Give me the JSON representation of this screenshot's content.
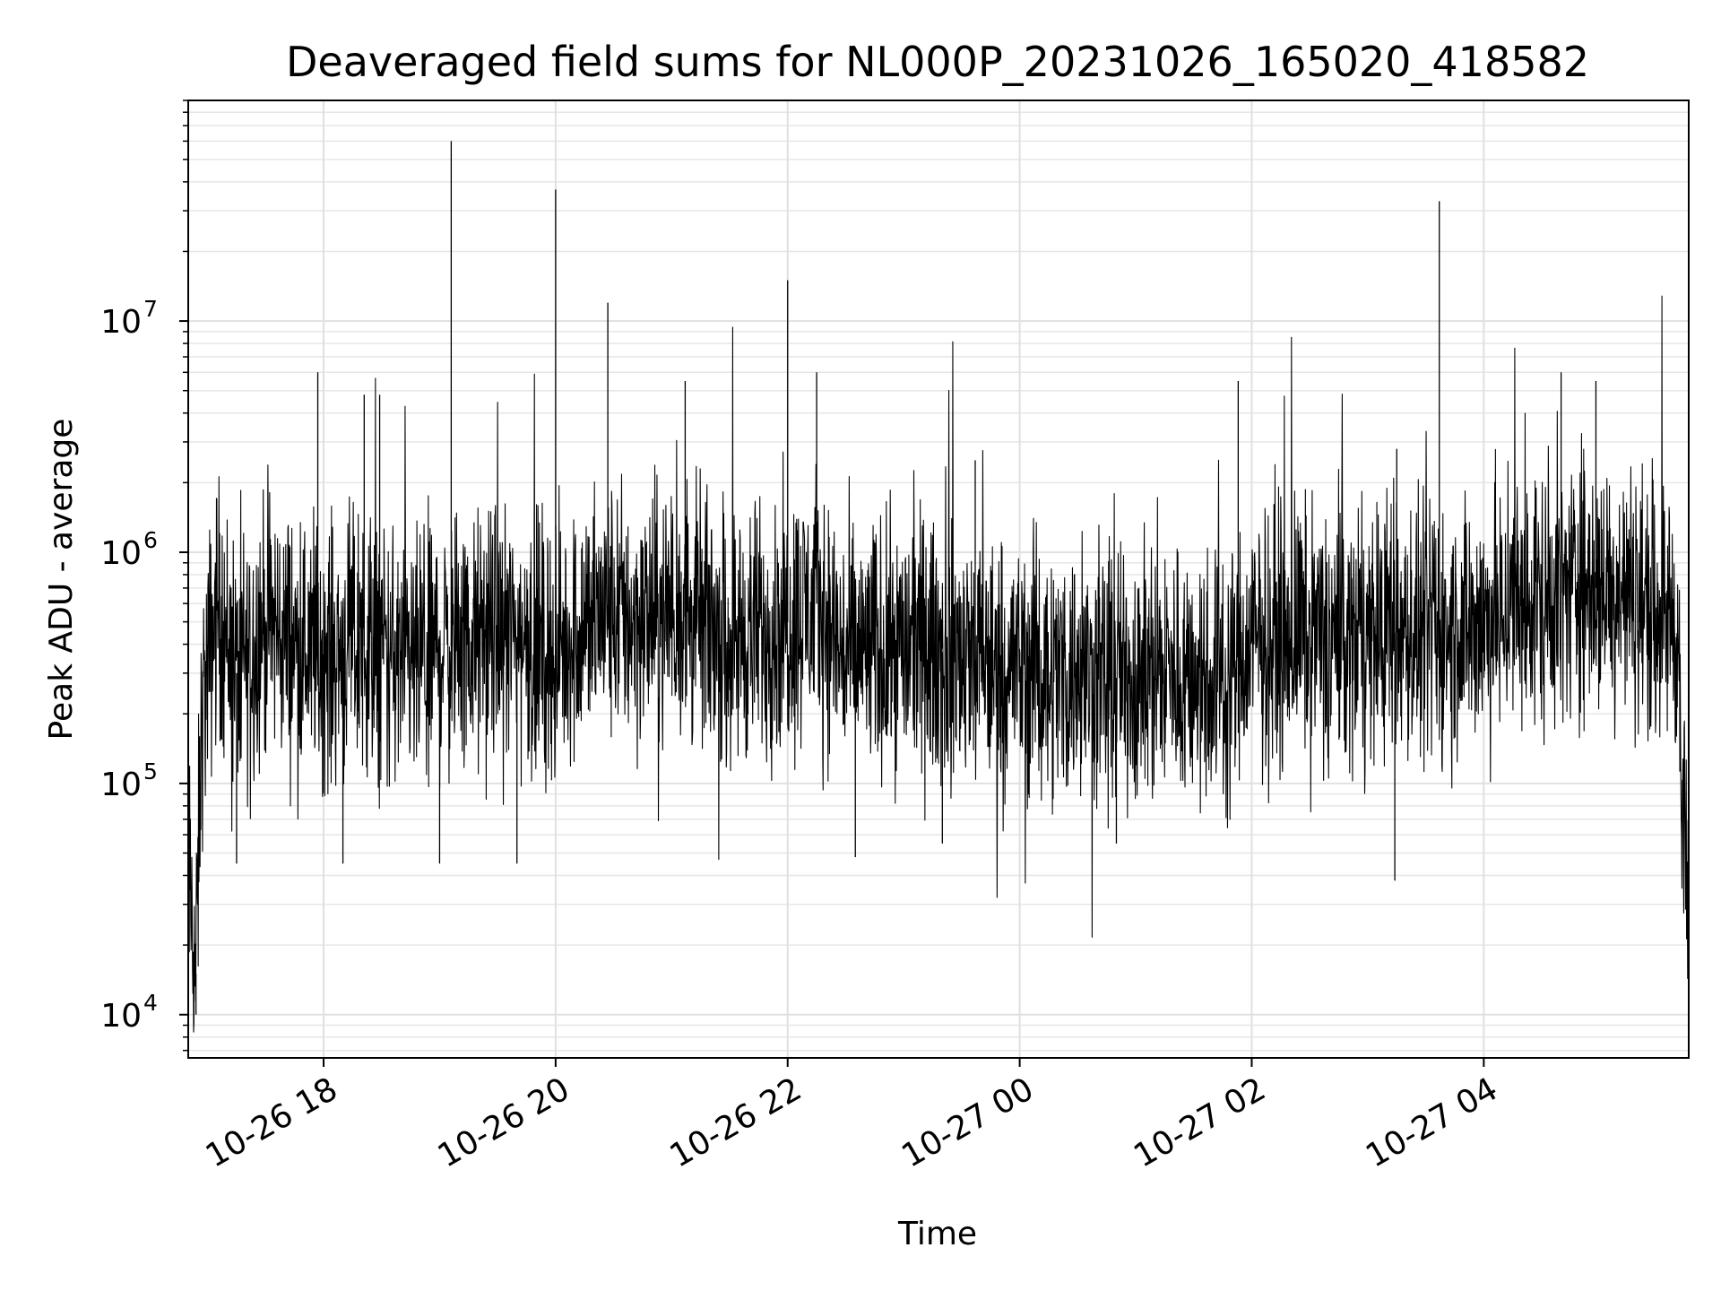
{
  "chart_data": {
    "type": "line",
    "title": "Deaveraged field sums for NL000P_20231026_165020_418582",
    "xlabel": "Time",
    "ylabel": "Peak ADU - average",
    "y_scale": "log",
    "ylim": [
      6500,
      90000000
    ],
    "xlim": [
      "2023-10-26 16:50",
      "2023-10-27 05:46"
    ],
    "grid": true,
    "line_color": "#000000",
    "x_ticks": [
      {
        "value": "2023-10-26 18:00",
        "label": "10-26 18"
      },
      {
        "value": "2023-10-26 20:00",
        "label": "10-26 20"
      },
      {
        "value": "2023-10-26 22:00",
        "label": "10-26 22"
      },
      {
        "value": "2023-10-27 00:00",
        "label": "10-27 00"
      },
      {
        "value": "2023-10-27 02:00",
        "label": "10-27 02"
      },
      {
        "value": "2023-10-27 04:00",
        "label": "10-27 04"
      }
    ],
    "y_ticks": [
      {
        "value": 10000,
        "base": "10",
        "exp": "4"
      },
      {
        "value": 100000,
        "base": "10",
        "exp": "5"
      },
      {
        "value": 1000000,
        "base": "10",
        "exp": "6"
      },
      {
        "value": 10000000,
        "base": "10",
        "exp": "7"
      }
    ],
    "series": [
      {
        "points": [
          [
            "2023-10-26 16:50",
            40000
          ],
          [
            "2023-10-26 16:54",
            15000
          ],
          [
            "2023-10-26 16:57",
            200000
          ],
          [
            "2023-10-26 17:05",
            600000
          ],
          [
            "2023-10-26 17:15",
            300000
          ],
          [
            "2023-10-26 17:30",
            500000
          ],
          [
            "2023-10-26 17:45",
            400000
          ],
          [
            "2023-10-26 18:00",
            350000
          ],
          [
            "2023-10-26 18:15",
            400000
          ],
          [
            "2023-10-26 18:30",
            380000
          ],
          [
            "2023-10-26 18:45",
            300000
          ],
          [
            "2023-10-26 19:00",
            400000
          ],
          [
            "2023-10-26 19:15",
            380000
          ],
          [
            "2023-10-26 19:30",
            450000
          ],
          [
            "2023-10-26 19:45",
            420000
          ],
          [
            "2023-10-26 20:00",
            350000
          ],
          [
            "2023-10-26 20:15",
            500000
          ],
          [
            "2023-10-26 20:30",
            550000
          ],
          [
            "2023-10-26 20:45",
            500000
          ],
          [
            "2023-10-26 21:00",
            550000
          ],
          [
            "2023-10-26 21:15",
            500000
          ],
          [
            "2023-10-26 21:30",
            420000
          ],
          [
            "2023-10-26 21:45",
            450000
          ],
          [
            "2023-10-26 22:00",
            500000
          ],
          [
            "2023-10-26 22:15",
            600000
          ],
          [
            "2023-10-26 22:30",
            350000
          ],
          [
            "2023-10-26 22:45",
            380000
          ],
          [
            "2023-10-26 23:00",
            400000
          ],
          [
            "2023-10-26 23:15",
            380000
          ],
          [
            "2023-10-26 23:30",
            350000
          ],
          [
            "2023-10-26 23:45",
            320000
          ],
          [
            "2023-10-27 00:00",
            320000
          ],
          [
            "2023-10-27 00:15",
            300000
          ],
          [
            "2023-10-27 00:30",
            300000
          ],
          [
            "2023-10-27 00:45",
            280000
          ],
          [
            "2023-10-27 01:00",
            300000
          ],
          [
            "2023-10-27 01:15",
            300000
          ],
          [
            "2023-10-27 01:30",
            300000
          ],
          [
            "2023-10-27 01:45",
            280000
          ],
          [
            "2023-10-27 02:00",
            400000
          ],
          [
            "2023-10-27 02:15",
            450000
          ],
          [
            "2023-10-27 02:30",
            450000
          ],
          [
            "2023-10-27 02:45",
            420000
          ],
          [
            "2023-10-27 03:00",
            430000
          ],
          [
            "2023-10-27 03:15",
            450000
          ],
          [
            "2023-10-27 03:30",
            420000
          ],
          [
            "2023-10-27 03:45",
            450000
          ],
          [
            "2023-10-27 04:00",
            500000
          ],
          [
            "2023-10-27 04:15",
            550000
          ],
          [
            "2023-10-27 04:30",
            600000
          ],
          [
            "2023-10-27 04:45",
            700000
          ],
          [
            "2023-10-27 05:00",
            700000
          ],
          [
            "2023-10-27 05:15",
            650000
          ],
          [
            "2023-10-27 05:30",
            600000
          ],
          [
            "2023-10-27 05:40",
            500000
          ],
          [
            "2023-10-27 05:43",
            60000
          ],
          [
            "2023-10-27 05:46",
            30000
          ]
        ],
        "spikes": [
          [
            "2023-10-26 19:06",
            60000000
          ],
          [
            "2023-10-26 20:00",
            37000000
          ],
          [
            "2023-10-26 20:27",
            12000000
          ],
          [
            "2023-10-26 22:00",
            15000000
          ],
          [
            "2023-10-26 22:15",
            6000000
          ],
          [
            "2023-10-26 21:07",
            5500000
          ],
          [
            "2023-10-26 17:57",
            6000000
          ],
          [
            "2023-10-26 18:21",
            4800000
          ],
          [
            "2023-10-26 18:29",
            4800000
          ],
          [
            "2023-10-27 01:53",
            5500000
          ],
          [
            "2023-10-27 03:37",
            33000000
          ],
          [
            "2023-10-27 04:40",
            6000000
          ],
          [
            "2023-10-27 04:58",
            5500000
          ],
          [
            "2023-10-26 23:37",
            2500000
          ],
          [
            "2023-10-27 03:15",
            2800000
          ]
        ],
        "dips": [
          [
            "2023-10-26 16:54",
            10000
          ],
          [
            "2023-10-26 17:15",
            45000
          ],
          [
            "2023-10-26 18:10",
            45000
          ],
          [
            "2023-10-26 19:00",
            45000
          ],
          [
            "2023-10-26 19:40",
            45000
          ],
          [
            "2023-10-26 22:35",
            48000
          ],
          [
            "2023-10-26 23:20",
            55000
          ],
          [
            "2023-10-27 00:50",
            55000
          ],
          [
            "2023-10-27 03:14",
            38000
          ],
          [
            "2023-10-27 05:46",
            17000
          ]
        ]
      }
    ]
  }
}
